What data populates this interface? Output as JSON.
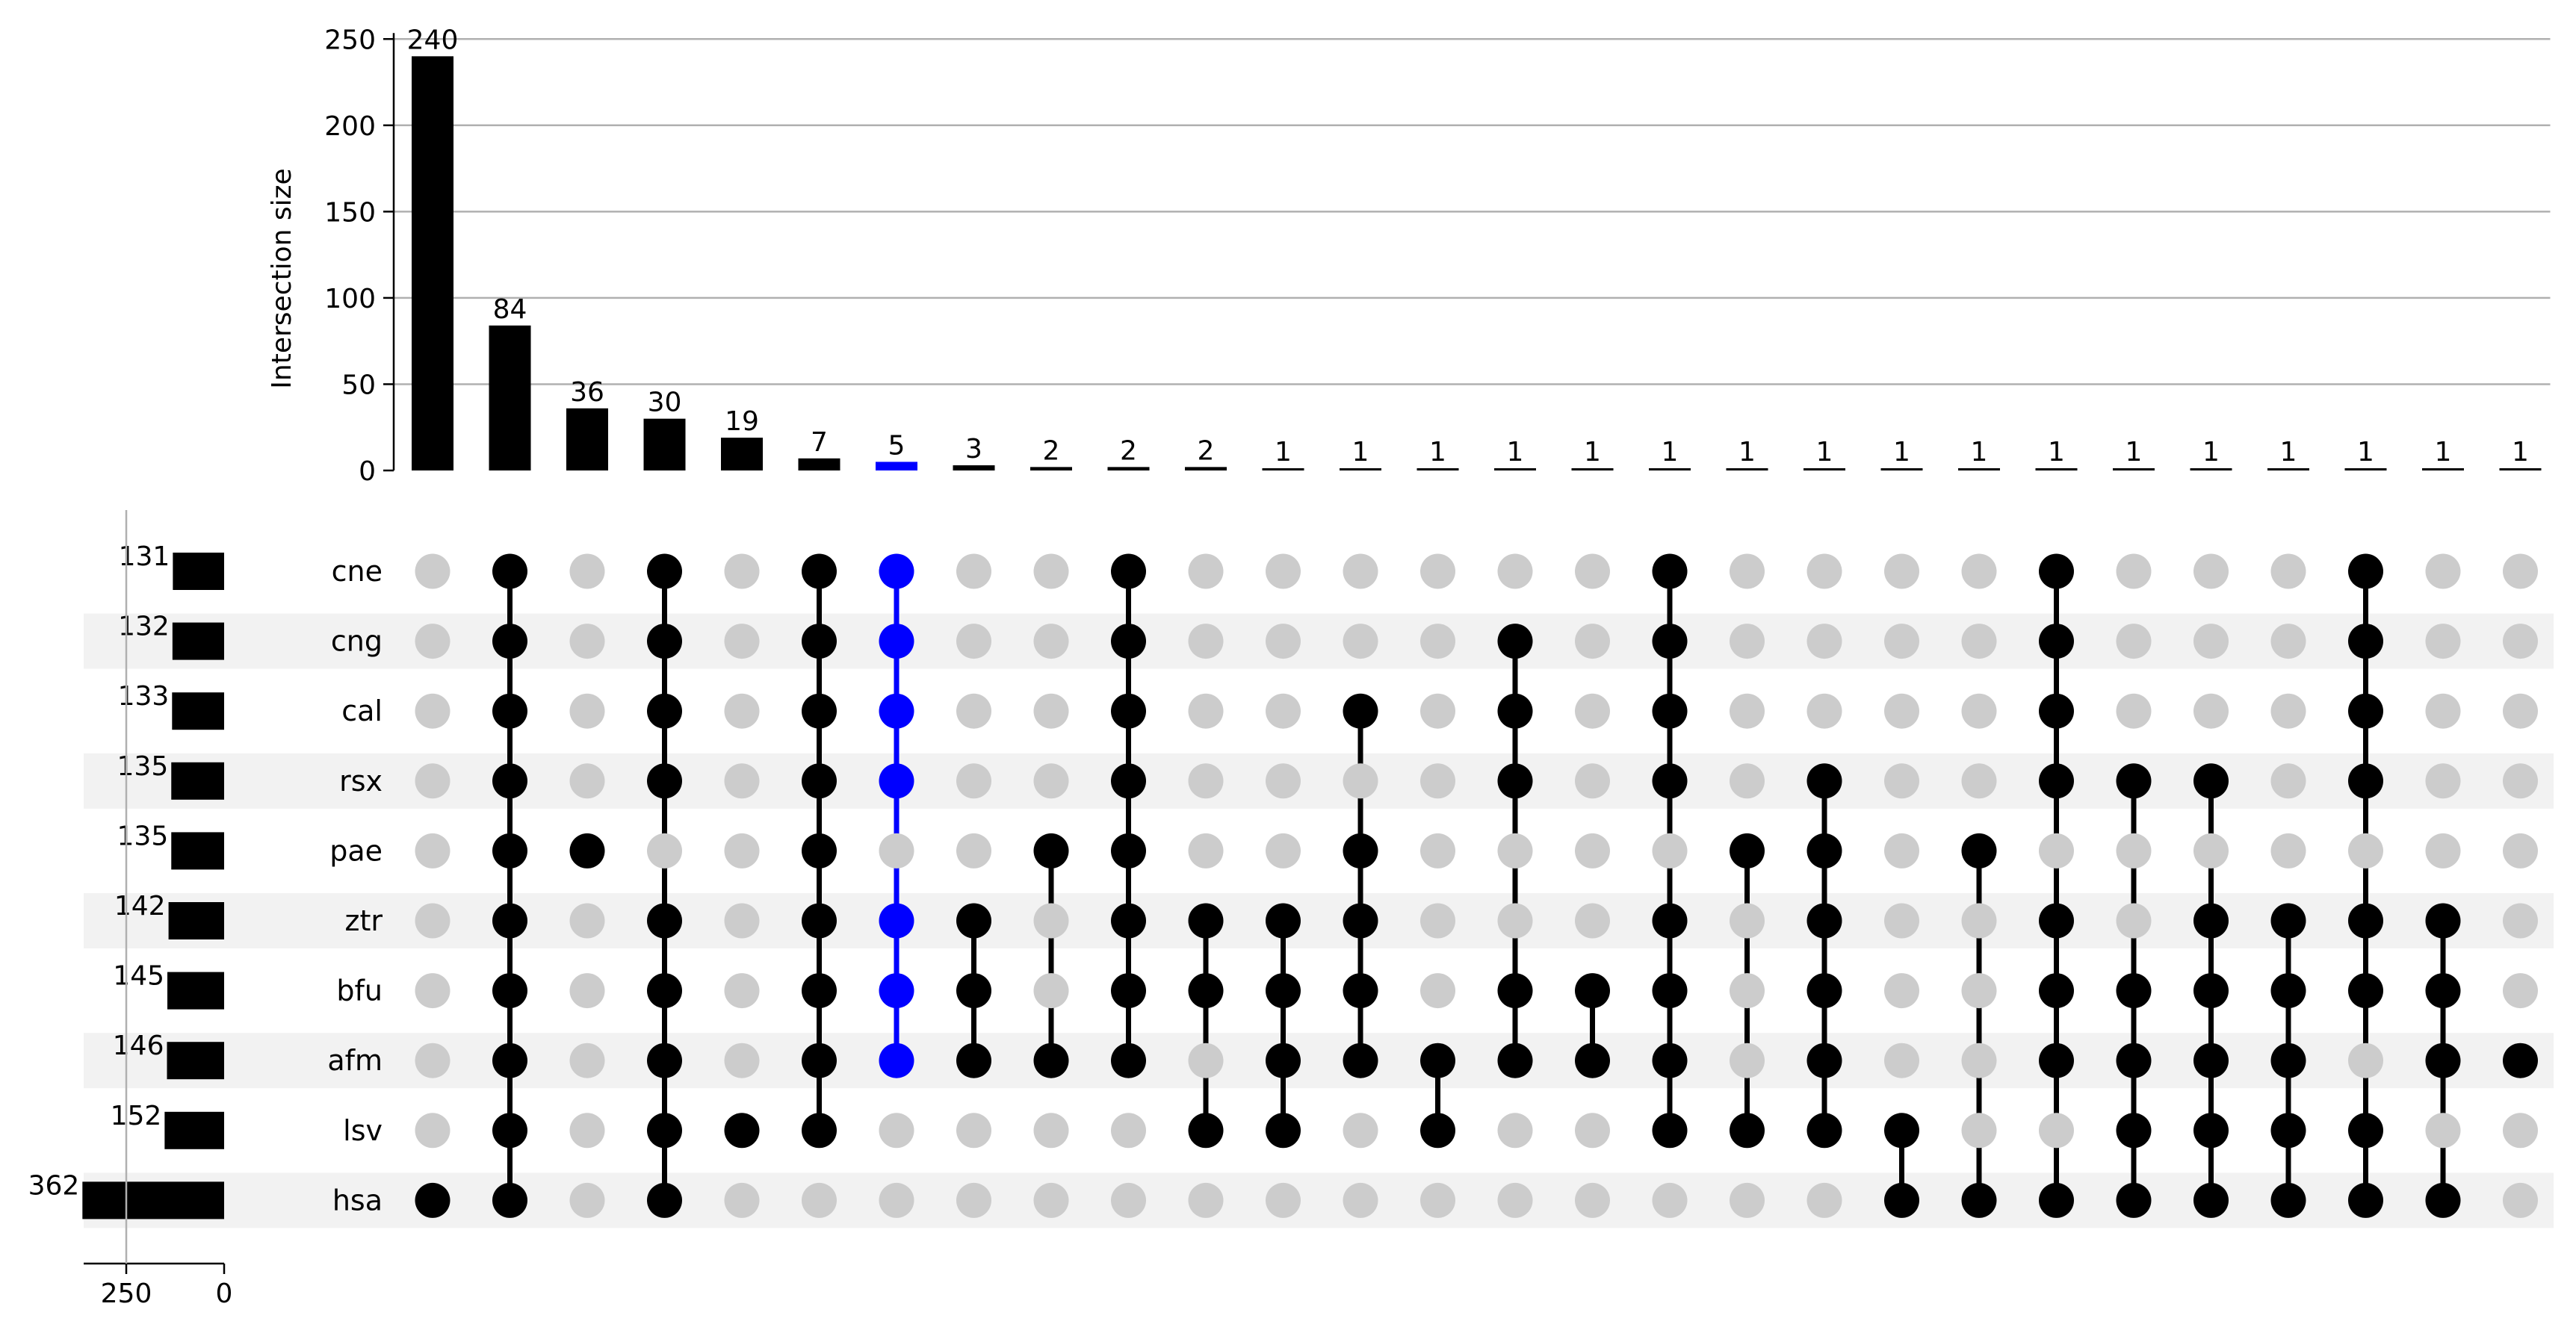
{
  "chart_data": {
    "type": "upset",
    "ylabel": "Intersection size",
    "y_ticks": [
      "0",
      "50",
      "100",
      "150",
      "200",
      "250"
    ],
    "ylim": [
      0,
      250
    ],
    "set_size_ticks": [
      "250",
      "0"
    ],
    "set_size_max": 362,
    "sets": [
      {
        "name": "cne",
        "size": 131
      },
      {
        "name": "cng",
        "size": 132
      },
      {
        "name": "cal",
        "size": 133
      },
      {
        "name": "rsx",
        "size": 135
      },
      {
        "name": "pae",
        "size": 135
      },
      {
        "name": "ztr",
        "size": 142
      },
      {
        "name": "bfu",
        "size": 145
      },
      {
        "name": "afm",
        "size": 146
      },
      {
        "name": "lsv",
        "size": 152
      },
      {
        "name": "hsa",
        "size": 362
      }
    ],
    "intersections": [
      {
        "size": 240,
        "members": [
          "hsa"
        ]
      },
      {
        "size": 84,
        "members": [
          "cne",
          "cng",
          "cal",
          "rsx",
          "pae",
          "ztr",
          "bfu",
          "afm",
          "lsv",
          "hsa"
        ]
      },
      {
        "size": 36,
        "members": [
          "pae"
        ]
      },
      {
        "size": 30,
        "members": [
          "cne",
          "cng",
          "cal",
          "rsx",
          "ztr",
          "bfu",
          "afm",
          "lsv",
          "hsa"
        ]
      },
      {
        "size": 19,
        "members": [
          "lsv"
        ]
      },
      {
        "size": 7,
        "members": [
          "cne",
          "cng",
          "cal",
          "rsx",
          "pae",
          "ztr",
          "bfu",
          "afm",
          "lsv"
        ]
      },
      {
        "size": 5,
        "members": [
          "cne",
          "cng",
          "cal",
          "rsx",
          "ztr",
          "bfu",
          "afm"
        ],
        "highlight": true
      },
      {
        "size": 3,
        "members": [
          "ztr",
          "bfu",
          "afm"
        ]
      },
      {
        "size": 2,
        "members": [
          "pae",
          "afm"
        ]
      },
      {
        "size": 2,
        "members": [
          "cne",
          "cng",
          "cal",
          "rsx",
          "pae",
          "ztr",
          "bfu",
          "afm"
        ]
      },
      {
        "size": 2,
        "members": [
          "ztr",
          "bfu",
          "lsv"
        ]
      },
      {
        "size": 1,
        "members": [
          "ztr",
          "bfu",
          "afm",
          "lsv"
        ]
      },
      {
        "size": 1,
        "members": [
          "cal",
          "pae",
          "ztr",
          "bfu",
          "afm"
        ]
      },
      {
        "size": 1,
        "members": [
          "afm",
          "lsv"
        ]
      },
      {
        "size": 1,
        "members": [
          "cng",
          "cal",
          "rsx",
          "bfu",
          "afm"
        ]
      },
      {
        "size": 1,
        "members": [
          "bfu",
          "afm"
        ]
      },
      {
        "size": 1,
        "members": [
          "cne",
          "cng",
          "cal",
          "rsx",
          "ztr",
          "bfu",
          "afm",
          "lsv"
        ]
      },
      {
        "size": 1,
        "members": [
          "pae",
          "lsv"
        ]
      },
      {
        "size": 1,
        "members": [
          "rsx",
          "pae",
          "ztr",
          "bfu",
          "afm",
          "lsv"
        ]
      },
      {
        "size": 1,
        "members": [
          "lsv",
          "hsa"
        ]
      },
      {
        "size": 1,
        "members": [
          "pae",
          "hsa"
        ]
      },
      {
        "size": 1,
        "members": [
          "cne",
          "cng",
          "cal",
          "rsx",
          "ztr",
          "bfu",
          "afm",
          "hsa"
        ]
      },
      {
        "size": 1,
        "members": [
          "rsx",
          "bfu",
          "afm",
          "lsv",
          "hsa"
        ]
      },
      {
        "size": 1,
        "members": [
          "rsx",
          "ztr",
          "bfu",
          "afm",
          "lsv",
          "hsa"
        ]
      },
      {
        "size": 1,
        "members": [
          "ztr",
          "bfu",
          "afm",
          "lsv",
          "hsa"
        ]
      },
      {
        "size": 1,
        "members": [
          "cne",
          "cng",
          "cal",
          "rsx",
          "ztr",
          "bfu",
          "lsv",
          "hsa"
        ]
      },
      {
        "size": 1,
        "members": [
          "ztr",
          "bfu",
          "afm",
          "hsa"
        ]
      },
      {
        "size": 1,
        "members": [
          "afm"
        ]
      }
    ],
    "colors": {
      "active": "#000000",
      "highlight": "#0000ff",
      "inactive": "#cccccc",
      "stripe": "#f2f2f2",
      "grid": "#b0b0b0"
    }
  }
}
